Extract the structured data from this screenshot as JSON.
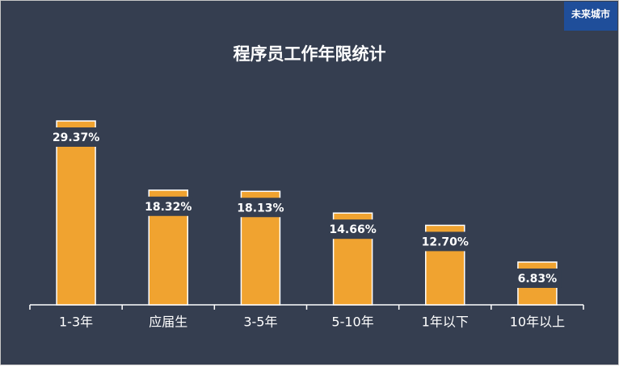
{
  "logo": "未来城市",
  "chart_data": {
    "type": "bar",
    "title": "程序员工作年限统计",
    "categories": [
      "1-3年",
      "应届生",
      "3-5年",
      "5-10年",
      "1年以下",
      "10年以上"
    ],
    "values": [
      29.37,
      18.32,
      18.13,
      14.66,
      12.7,
      6.83
    ],
    "value_labels": [
      "29.37%",
      "18.32%",
      "18.13%",
      "14.66%",
      "12.70%",
      "6.83%"
    ],
    "color": "#f0a330"
  }
}
